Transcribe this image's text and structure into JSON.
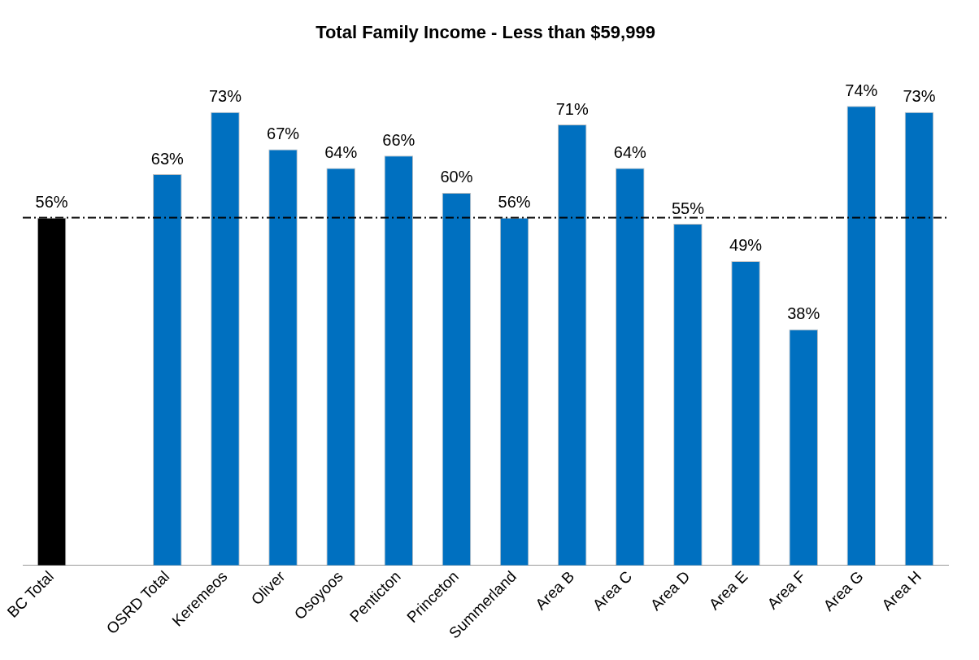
{
  "chart_data": {
    "type": "bar",
    "title": "Total Family Income - Less than $59,999",
    "categories": [
      "BC Total",
      null,
      "OSRD Total",
      "Keremeos",
      "Oliver",
      "Osoyoos",
      "Penticton",
      "Princeton",
      "Summerland",
      "Area B",
      "Area C",
      "Area D",
      "Area E",
      "Area F",
      "Area G",
      "Area H"
    ],
    "values": [
      56,
      null,
      63,
      73,
      67,
      64,
      66,
      60,
      56,
      71,
      64,
      55,
      49,
      38,
      74,
      73
    ],
    "value_labels": [
      "56%",
      null,
      "63%",
      "73%",
      "67%",
      "64%",
      "66%",
      "60%",
      "56%",
      "71%",
      "64%",
      "55%",
      "49%",
      "38%",
      "74%",
      "73%"
    ],
    "colors": [
      "#000000",
      "#0070c0",
      "#0070c0",
      "#0070c0",
      "#0070c0",
      "#0070c0",
      "#0070c0",
      "#0070c0",
      "#0070c0",
      "#0070c0",
      "#0070c0",
      "#0070c0",
      "#0070c0",
      "#0070c0",
      "#0070c0",
      "#0070c0"
    ],
    "ref_lines": [
      {
        "axis": "y",
        "value": 56,
        "color": "#000000",
        "line_style": "dashed"
      }
    ],
    "grid": false,
    "legend": false
  }
}
